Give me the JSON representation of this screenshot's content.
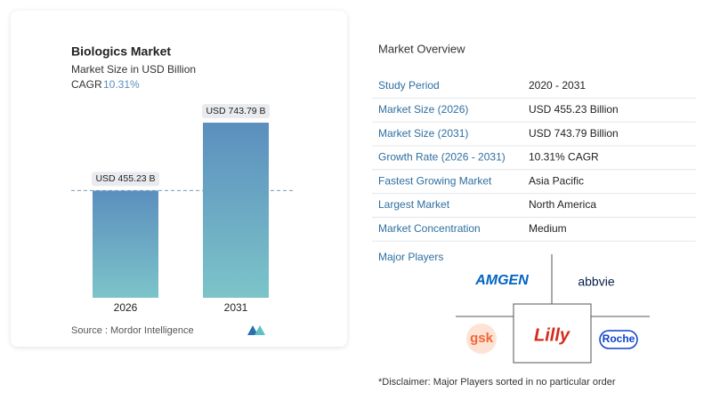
{
  "chart_data": {
    "type": "bar",
    "title": "Biologics Market",
    "subtitle": "Market Size in USD Billion",
    "cagr_label": "CAGR",
    "cagr": "10.31%",
    "categories": [
      "2026",
      "2031"
    ],
    "values": [
      455.23,
      743.79
    ],
    "value_labels": [
      "USD 455.23 B",
      "USD 743.79 B"
    ],
    "source": "Source :  Mordor Intelligence"
  },
  "overview": {
    "title": "Market Overview",
    "rows": [
      [
        "Study Period",
        "2020 - 2031"
      ],
      [
        "Market Size (2026)",
        "USD 455.23 Billion"
      ],
      [
        "Market Size (2031)",
        "USD 743.79 Billion"
      ],
      [
        "Growth Rate (2026 - 2031)",
        "10.31% CAGR"
      ],
      [
        "Fastest Growing Market",
        "Asia Pacific"
      ],
      [
        "Largest Market",
        "North America"
      ],
      [
        "Market Concentration",
        "Medium"
      ]
    ],
    "major_players_title": "Major Players",
    "major_players": [
      "AMGEN",
      "abbvie",
      "gsk",
      "Lilly",
      "Roche"
    ],
    "disclaimer": "*Disclaimer: Major Players sorted in no particular order"
  }
}
